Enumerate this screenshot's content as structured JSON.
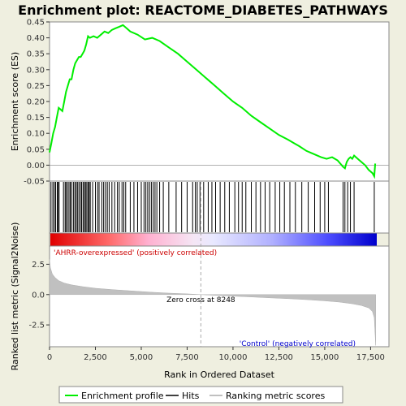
{
  "chart_data": {
    "type": "line",
    "title": "Enrichment plot: REACTOME_DIABETES_PATHWAYS",
    "xlabel": "Rank in Ordered Dataset",
    "xlim": [
      0,
      18500
    ],
    "x_ticks": [
      0,
      2500,
      5000,
      7500,
      10000,
      12500,
      15000,
      17500
    ],
    "x_tick_labels": [
      "0",
      "2,500",
      "5,000",
      "7,500",
      "10,000",
      "12,500",
      "15,000",
      "17,500"
    ],
    "es_panel": {
      "ylabel": "Enrichment score (ES)",
      "ylim": [
        -0.05,
        0.45
      ],
      "y_ticks": [
        -0.05,
        0.0,
        0.05,
        0.1,
        0.15,
        0.2,
        0.25,
        0.3,
        0.35,
        0.4,
        0.45
      ],
      "y_tick_labels": [
        "-0.05",
        "0.00",
        "0.05",
        "0.10",
        "0.15",
        "0.20",
        "0.25",
        "0.30",
        "0.35",
        "0.40",
        "0.45"
      ],
      "series": [
        {
          "name": "Enrichment profile",
          "color": "#00ee00",
          "x": [
            0,
            100,
            200,
            300,
            400,
            500,
            700,
            800,
            900,
            1000,
            1100,
            1200,
            1300,
            1400,
            1500,
            1600,
            1700,
            1800,
            1900,
            2000,
            2100,
            2200,
            2400,
            2600,
            2800,
            3000,
            3200,
            3400,
            3600,
            3800,
            4000,
            4200,
            4400,
            4800,
            5200,
            5600,
            6000,
            6500,
            7000,
            7500,
            8000,
            8500,
            9000,
            9500,
            10000,
            10500,
            11000,
            11500,
            12000,
            12500,
            13000,
            13300,
            13600,
            14000,
            14400,
            14800,
            15100,
            15400,
            15700,
            16000,
            16100,
            16200,
            16300,
            16400,
            16500,
            16600,
            16800,
            17000,
            17200,
            17400,
            17600,
            17700,
            17750
          ],
          "y": [
            0.04,
            0.07,
            0.1,
            0.12,
            0.15,
            0.18,
            0.17,
            0.2,
            0.23,
            0.25,
            0.27,
            0.27,
            0.3,
            0.32,
            0.33,
            0.34,
            0.34,
            0.35,
            0.36,
            0.38,
            0.405,
            0.4,
            0.405,
            0.4,
            0.41,
            0.42,
            0.415,
            0.425,
            0.43,
            0.435,
            0.44,
            0.43,
            0.42,
            0.41,
            0.395,
            0.4,
            0.39,
            0.37,
            0.35,
            0.325,
            0.3,
            0.275,
            0.25,
            0.225,
            0.2,
            0.18,
            0.155,
            0.135,
            0.115,
            0.095,
            0.08,
            0.07,
            0.06,
            0.045,
            0.035,
            0.025,
            0.02,
            0.025,
            0.015,
            -0.005,
            -0.01,
            0.01,
            0.02,
            0.025,
            0.02,
            0.03,
            0.02,
            0.01,
            0.0,
            -0.015,
            -0.025,
            -0.035,
            0.005
          ]
        }
      ]
    },
    "hits_panel": {
      "name": "Hits",
      "hit_ranks": [
        80,
        180,
        260,
        330,
        420,
        480,
        520,
        760,
        850,
        900,
        980,
        1060,
        1130,
        1200,
        1300,
        1380,
        1450,
        1520,
        1600,
        1680,
        1750,
        1830,
        1900,
        1960,
        2030,
        2100,
        2160,
        2220,
        2350,
        2500,
        2620,
        2700,
        2850,
        2950,
        3050,
        3150,
        3250,
        3400,
        3550,
        3700,
        3800,
        3950,
        4050,
        4150,
        4400,
        4600,
        4800,
        5000,
        5150,
        5250,
        5350,
        5450,
        5550,
        5650,
        5750,
        5850,
        6000,
        6200,
        6500,
        6900,
        7200,
        7500,
        7800,
        7950,
        8050,
        8200,
        8400,
        8650,
        8850,
        9050,
        9300,
        9550,
        9800,
        10100,
        10300,
        10500,
        10700,
        11000,
        11250,
        11500,
        11750,
        12000,
        12300,
        12550,
        12800,
        13100,
        13400,
        13750,
        14100,
        14450,
        14750,
        15000,
        15200,
        16000,
        16100,
        16250,
        16400,
        16600,
        17700
      ]
    },
    "ranking_panel": {
      "name": "Ranking metric scores",
      "ylabel": "Ranked list metric (Signal2Noise)",
      "ylim": [
        -4.3,
        4.0
      ],
      "y_ticks": [
        -2.5,
        0.0,
        2.5
      ],
      "y_tick_labels": [
        "-2.5",
        "0.0",
        "2.5"
      ],
      "x": [
        0,
        50,
        150,
        300,
        500,
        800,
        1200,
        1800,
        2500,
        3500,
        4500,
        5500,
        6500,
        7500,
        8248,
        9000,
        10000,
        11000,
        12000,
        13000,
        14000,
        15000,
        15800,
        16500,
        17000,
        17400,
        17600,
        17700,
        17780
      ],
      "values": [
        2.9,
        2.2,
        1.7,
        1.4,
        1.15,
        0.95,
        0.8,
        0.65,
        0.52,
        0.4,
        0.3,
        0.2,
        0.12,
        0.06,
        0.0,
        -0.06,
        -0.13,
        -0.2,
        -0.27,
        -0.34,
        -0.42,
        -0.52,
        -0.62,
        -0.76,
        -0.9,
        -1.1,
        -1.4,
        -1.9,
        -4.2
      ],
      "zero_cross_rank": 8248,
      "zero_cross_label": "Zero cross at 8248",
      "pos_label": "'AHRR-overexpressed' (positively correlated)",
      "neg_label": "'Control' (negatively correlated)"
    },
    "legend": {
      "placement": "bottom",
      "entries": [
        "Enrichment profile",
        "Hits",
        "Ranking metric scores"
      ]
    },
    "colors": {
      "profile": "#00ee00",
      "hits": "#000000",
      "ranking_fill": "#c0c0c0",
      "panel_bg": "#ffffff",
      "outer_bg": "#efefe0",
      "zero_cross_line": "#aaaaaa"
    }
  }
}
